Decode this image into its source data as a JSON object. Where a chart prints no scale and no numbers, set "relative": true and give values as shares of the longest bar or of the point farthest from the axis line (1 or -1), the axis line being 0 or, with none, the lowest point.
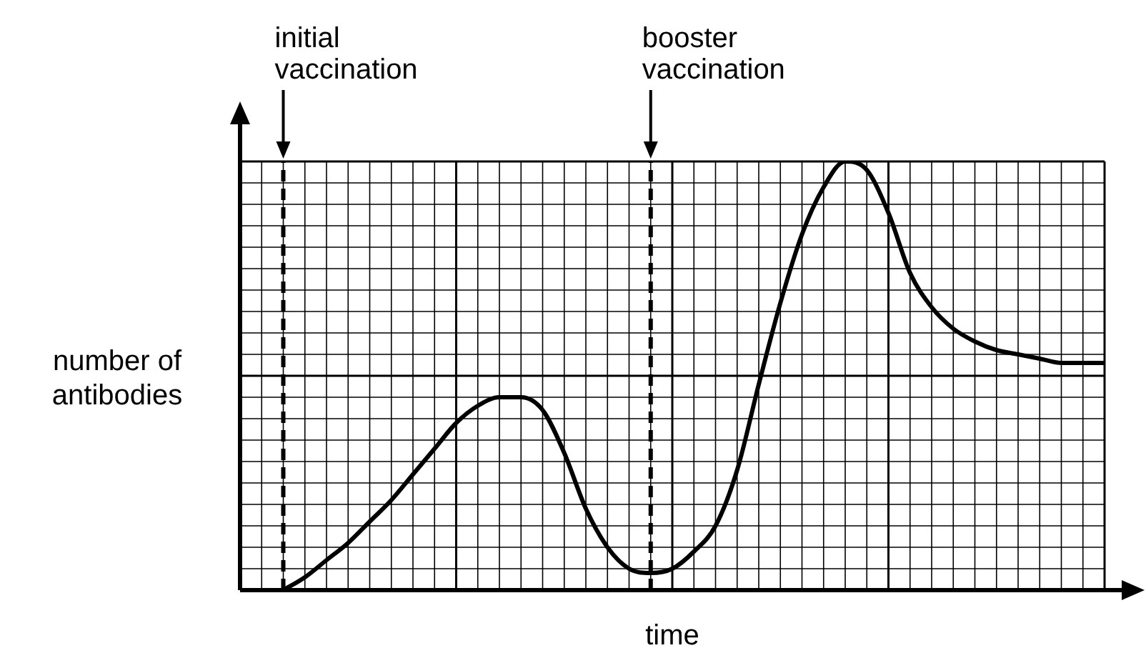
{
  "chart_data": {
    "type": "line",
    "xlabel": "time",
    "ylabel": "number of antibodies",
    "relative": true,
    "grid": true,
    "marker": "none",
    "line_style": "solid",
    "annotations": [
      "initial vaccination",
      "booster vaccination"
    ],
    "categories": [
      null,
      null,
      null,
      null,
      null,
      null,
      null,
      null,
      null,
      null,
      null,
      null,
      null,
      null,
      null,
      null,
      null,
      null,
      null,
      null,
      null,
      null,
      null,
      null,
      null,
      null,
      null,
      null,
      null,
      null,
      null,
      null,
      null,
      null,
      null,
      null,
      null,
      null,
      null,
      null,
      null
    ],
    "series": [
      {
        "color": "#000000",
        "values": [
          null,
          null,
          0,
          0.03,
          0.07,
          0.11,
          0.16,
          0.21,
          0.27,
          0.33,
          0.39,
          0.43,
          0.45,
          0.45,
          0.42,
          0.32,
          0.19,
          0.1,
          0.05,
          0.04,
          0.05,
          0.09,
          0.15,
          0.28,
          0.48,
          0.67,
          0.83,
          0.94,
          1.0,
          0.98,
          0.88,
          0.74,
          0.66,
          0.61,
          0.58,
          0.56,
          0.55,
          0.54,
          0.53,
          0.53,
          0.53
        ]
      }
    ],
    "legend": false
  }
}
